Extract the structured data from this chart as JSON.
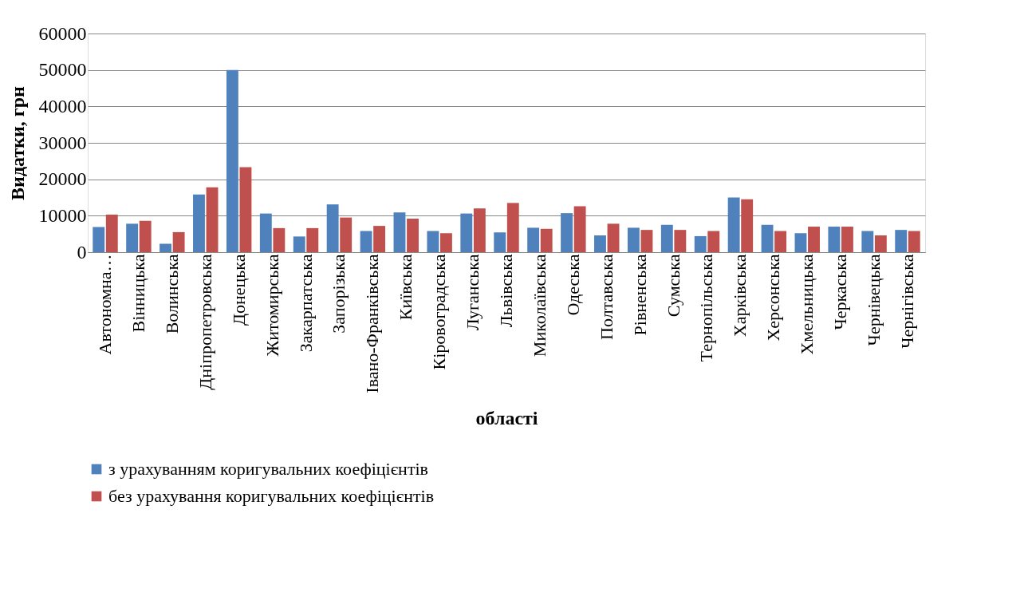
{
  "chart_data": {
    "type": "bar",
    "xlabel": "області",
    "ylabel": "Видатки, грн",
    "categories": [
      "Автономна…",
      "Вінницька",
      "Волинська",
      "Дніпропетровська",
      "Донецька",
      "Житомирська",
      "Закарпатська",
      "Запорізька",
      "Івано-Франківська",
      "Київська",
      "Кіровоградська",
      "Луганська",
      "Львівська",
      "Миколаївська",
      "Одеська",
      "Полтавська",
      "Рівненська",
      "Сумська",
      "Тернопільська",
      "Харківська",
      "Херсонська",
      "Хмельницька",
      "Черкаська",
      "Чернівецька",
      "Чернігівська"
    ],
    "series": [
      {
        "name": "з урахуванням коригувальних коефіцієнтів",
        "color": "#4f81bd",
        "values": [
          6900,
          7800,
          2300,
          15800,
          50000,
          10600,
          4300,
          13100,
          5800,
          10900,
          5800,
          10600,
          5400,
          6700,
          10700,
          4600,
          6700,
          7500,
          4400,
          15000,
          7500,
          5200,
          7000,
          5800,
          6100
        ]
      },
      {
        "name": "без урахування коригувальних коефіцієнтів",
        "color": "#c0504d",
        "values": [
          10300,
          8600,
          5500,
          17800,
          23300,
          6600,
          6600,
          9500,
          7200,
          9200,
          5200,
          12000,
          13500,
          6400,
          12600,
          7800,
          6100,
          6100,
          5800,
          14500,
          5800,
          7000,
          7000,
          4600,
          5800
        ]
      }
    ],
    "ylim": [
      0,
      60000
    ],
    "yticks": [
      0,
      10000,
      20000,
      30000,
      40000,
      50000,
      60000
    ],
    "grid": "y",
    "legend": "bottom"
  }
}
